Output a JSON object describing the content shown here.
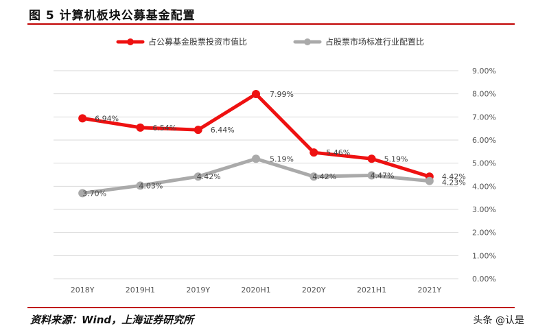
{
  "figure": {
    "title": "图 5 计算机板块公募基金配置",
    "source": "资料来源：Wind，上海证券研究所",
    "watermark": "头条 @认是"
  },
  "chart_data": {
    "type": "line",
    "title": "",
    "xlabel": "",
    "ylabel": "",
    "categories": [
      "2018Y",
      "2019H1",
      "2019Y",
      "2020H1",
      "2020Y",
      "2021H1",
      "2021Y"
    ],
    "series": [
      {
        "name": "占公募基金股票投资市值比",
        "color": "#ee1111",
        "values": [
          6.94,
          6.54,
          6.44,
          7.99,
          5.46,
          5.19,
          4.42
        ],
        "labels": [
          "6.94%",
          "6.54%",
          "6.44%",
          "7.99%",
          "5.46%",
          "5.19%",
          "4.42%"
        ]
      },
      {
        "name": "占股票市场标准行业配置比",
        "color": "#aaaaaa",
        "values": [
          3.7,
          4.03,
          4.42,
          5.19,
          4.42,
          4.47,
          4.23
        ],
        "labels": [
          "3.70%",
          "4.03%",
          "4.42%",
          "5.19%",
          "4.42%",
          "4.47%",
          "4.23%"
        ]
      }
    ],
    "ylim": [
      0,
      9
    ],
    "yticks": [
      0,
      1,
      2,
      3,
      4,
      5,
      6,
      7,
      8,
      9
    ],
    "ytick_labels": [
      "0.00%",
      "1.00%",
      "2.00%",
      "3.00%",
      "4.00%",
      "5.00%",
      "6.00%",
      "7.00%",
      "8.00%",
      "9.00%"
    ],
    "y_axis_side": "right",
    "grid": true,
    "legend": "top"
  }
}
